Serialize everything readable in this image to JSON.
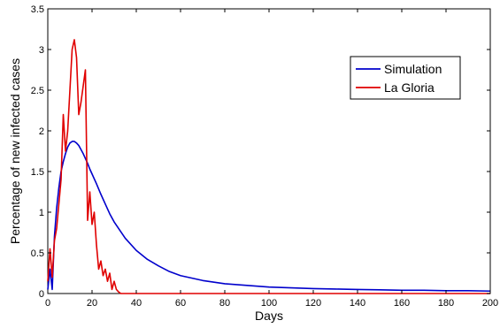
{
  "chart_data": {
    "type": "line",
    "xlabel": "Days",
    "ylabel": "Percentage of new infected cases",
    "xlim": [
      0,
      200
    ],
    "ylim": [
      0,
      3.5
    ],
    "x_ticks": [
      "0",
      "20",
      "40",
      "60",
      "80",
      "100",
      "120",
      "140",
      "160",
      "180",
      "200"
    ],
    "y_ticks": [
      "0",
      "0.5",
      "1",
      "1.5",
      "2",
      "2.5",
      "3",
      "3.5"
    ],
    "grid": false,
    "legend_position": "top-right",
    "series": [
      {
        "name": "Simulation",
        "color": "#0000cc",
        "x": [
          0,
          1,
          2,
          3,
          4,
          5,
          6,
          7,
          8,
          9,
          10,
          11,
          12,
          13,
          14,
          15,
          16,
          17,
          18,
          19,
          20,
          22,
          24,
          26,
          28,
          30,
          35,
          40,
          45,
          50,
          55,
          60,
          70,
          80,
          90,
          100,
          110,
          120,
          130,
          140,
          150,
          160,
          170,
          180,
          190,
          200
        ],
        "y": [
          0.05,
          0.3,
          0.05,
          0.7,
          1.05,
          1.3,
          1.5,
          1.62,
          1.72,
          1.8,
          1.85,
          1.87,
          1.87,
          1.85,
          1.82,
          1.77,
          1.72,
          1.66,
          1.6,
          1.53,
          1.47,
          1.35,
          1.22,
          1.1,
          0.98,
          0.88,
          0.68,
          0.53,
          0.42,
          0.34,
          0.27,
          0.22,
          0.16,
          0.12,
          0.1,
          0.08,
          0.07,
          0.06,
          0.055,
          0.05,
          0.045,
          0.04,
          0.04,
          0.035,
          0.035,
          0.03
        ]
      },
      {
        "name": "La Gloria",
        "color": "#e00000",
        "x": [
          0,
          1,
          2,
          3,
          4,
          5,
          6,
          7,
          8,
          9,
          10,
          11,
          12,
          13,
          14,
          15,
          16,
          17,
          18,
          19,
          20,
          21,
          22,
          23,
          24,
          25,
          26,
          27,
          28,
          29,
          30,
          31,
          32,
          33,
          40,
          60,
          80,
          100,
          120,
          140,
          160,
          180,
          200
        ],
        "y": [
          0.15,
          0.55,
          0.2,
          0.65,
          0.8,
          1.1,
          1.4,
          2.2,
          1.75,
          2.0,
          2.5,
          3.0,
          3.12,
          2.9,
          2.2,
          2.35,
          2.55,
          2.75,
          0.9,
          1.25,
          0.85,
          1.0,
          0.6,
          0.3,
          0.4,
          0.22,
          0.3,
          0.15,
          0.25,
          0.05,
          0.15,
          0.05,
          0.02,
          0.0,
          0.0,
          0.0,
          0.0,
          0.0,
          0.0,
          0.0,
          0.0,
          0.0,
          0.0
        ]
      }
    ]
  }
}
